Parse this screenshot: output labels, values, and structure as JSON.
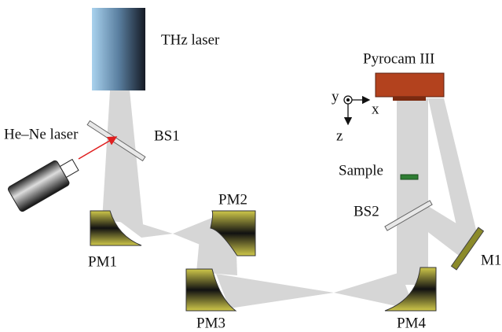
{
  "components": {
    "thz_laser": "THz laser",
    "he_ne_laser": "He–Ne laser",
    "bs1": "BS1",
    "pm1": "PM1",
    "pm2": "PM2",
    "pm3": "PM3",
    "pm4": "PM4",
    "pyrocam": "Pyrocam III",
    "sample": "Sample",
    "bs2": "BS2",
    "m1": "M1"
  },
  "axes": {
    "y": "y",
    "x": "x",
    "z": "z"
  }
}
